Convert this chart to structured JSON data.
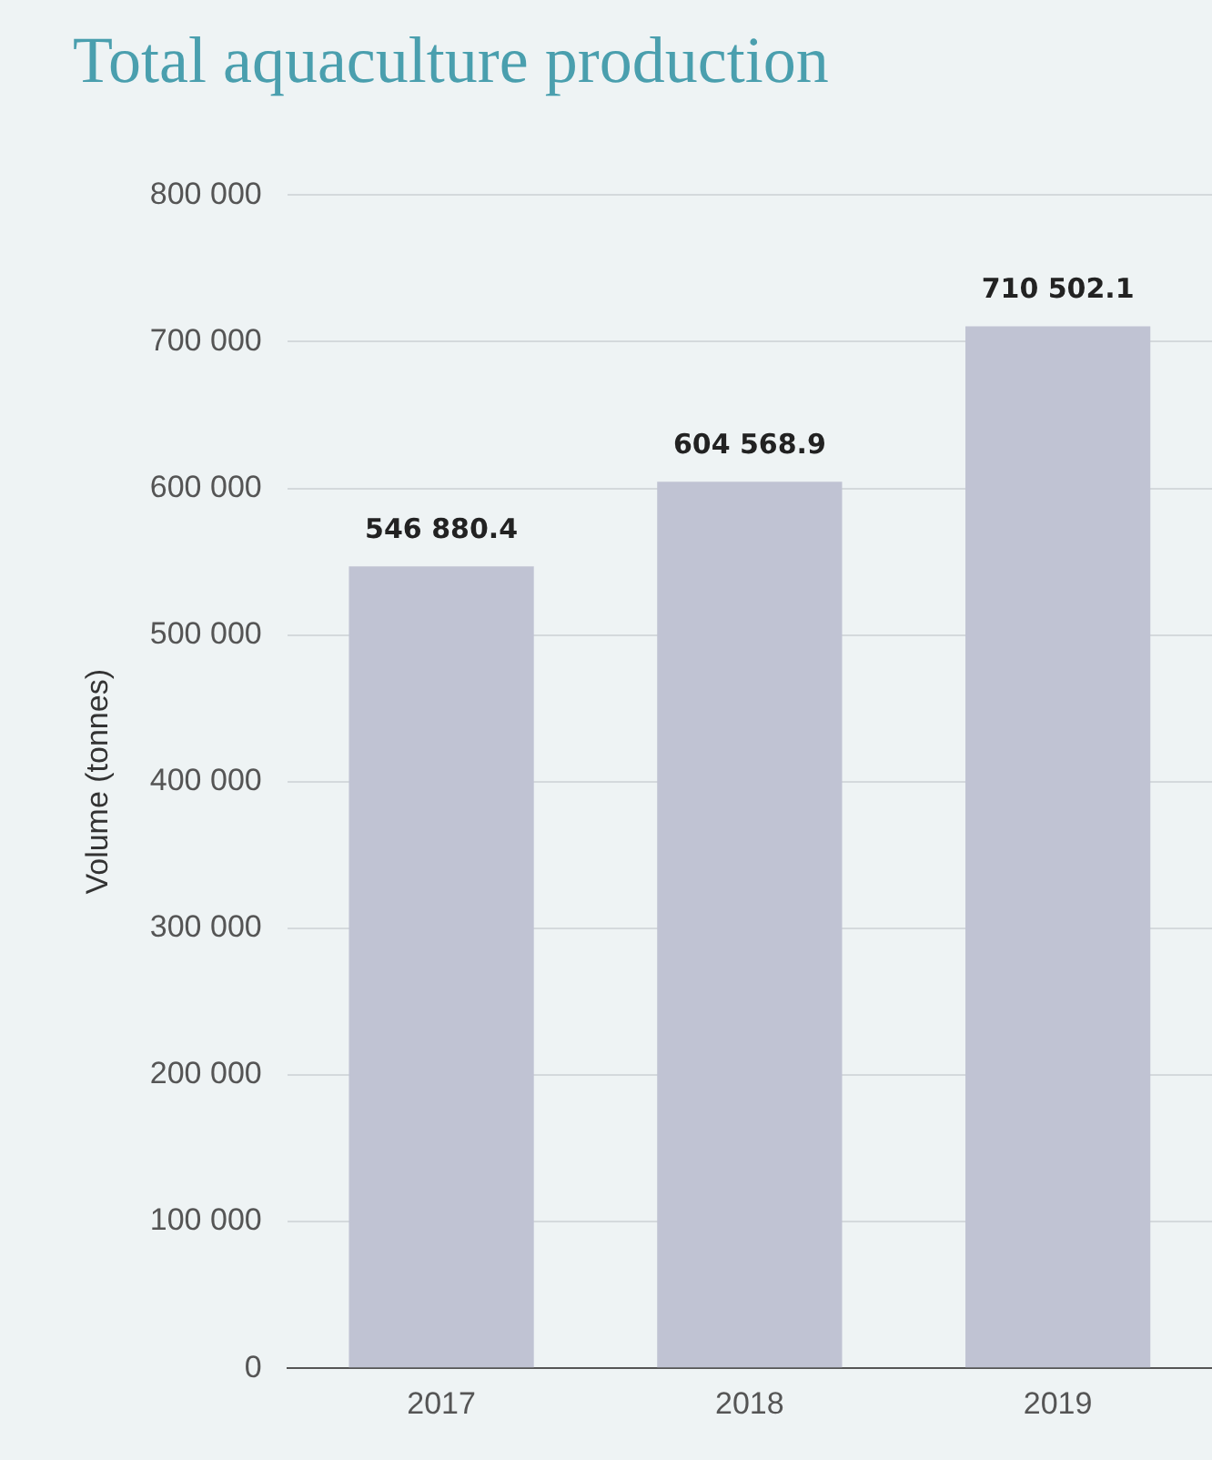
{
  "chart_data": {
    "type": "bar",
    "title": "Total aquaculture production",
    "ylabel": "Volume (tonnes)",
    "categories": [
      "2017",
      "2018",
      "2019"
    ],
    "values": [
      546880.4,
      604568.9,
      710502.1
    ],
    "value_labels": [
      "546 880.4",
      "604 568.9",
      "710 502.1"
    ],
    "color": "#c0c3d3",
    "ylim": [
      0,
      800000
    ],
    "yticks": [
      {
        "value": 0,
        "label": "0"
      },
      {
        "value": 100000,
        "label": "100 000"
      },
      {
        "value": 200000,
        "label": "200 000"
      },
      {
        "value": 300000,
        "label": "300 000"
      },
      {
        "value": 400000,
        "label": "400 000"
      },
      {
        "value": 500000,
        "label": "500 000"
      },
      {
        "value": 600000,
        "label": "600 000"
      },
      {
        "value": 700000,
        "label": "700 000"
      },
      {
        "value": 800000,
        "label": "800 000"
      }
    ],
    "grid": "y",
    "legend": false
  }
}
